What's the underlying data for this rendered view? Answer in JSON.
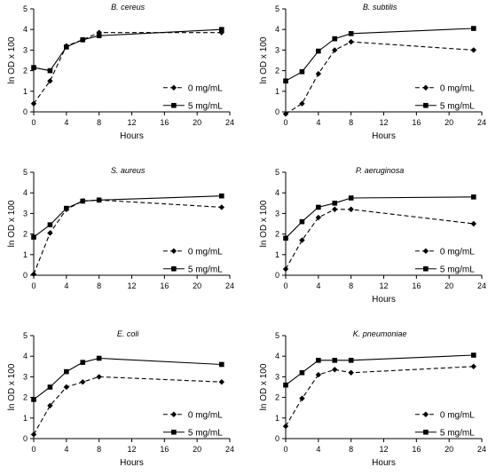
{
  "chart_data": [
    {
      "type": "line",
      "title": "B. cereus",
      "xlabel": "Hours",
      "ylabel": "ln OD x 100",
      "xlim": [
        0,
        24
      ],
      "ylim": [
        0,
        5
      ],
      "xticks": [
        0,
        4,
        8,
        12,
        16,
        20,
        24
      ],
      "yticks": [
        0,
        1,
        2,
        3,
        4,
        5
      ],
      "legend_position": "center-right",
      "series": [
        {
          "name": "0 mg/mL",
          "marker": "diamond",
          "line": "dashed",
          "x": [
            0,
            2,
            4,
            6,
            8,
            23
          ],
          "y": [
            0.4,
            1.5,
            3.2,
            3.5,
            3.85,
            3.85
          ]
        },
        {
          "name": "5 mg/mL",
          "marker": "square",
          "line": "solid",
          "x": [
            0,
            2,
            4,
            6,
            8,
            23
          ],
          "y": [
            2.15,
            2.0,
            3.15,
            3.5,
            3.7,
            4.0
          ]
        }
      ]
    },
    {
      "type": "line",
      "title": "B. subtilis",
      "xlabel": "Hours",
      "ylabel": "ln OD x 100",
      "xlim": [
        0,
        24
      ],
      "ylim": [
        0,
        5
      ],
      "xticks": [
        0,
        4,
        8,
        12,
        16,
        20,
        24
      ],
      "yticks": [
        0,
        1,
        2,
        3,
        4,
        5
      ],
      "legend_position": "center-right",
      "series": [
        {
          "name": "0 mg/mL",
          "marker": "diamond",
          "line": "dashed",
          "x": [
            0,
            2,
            4,
            6,
            8,
            23
          ],
          "y": [
            -0.1,
            0.4,
            1.85,
            3.0,
            3.4,
            3.0
          ]
        },
        {
          "name": "5 mg/mL",
          "marker": "square",
          "line": "solid",
          "x": [
            0,
            2,
            4,
            6,
            8,
            23
          ],
          "y": [
            1.5,
            1.95,
            2.95,
            3.55,
            3.8,
            4.05
          ]
        }
      ]
    },
    {
      "type": "line",
      "title": "S. aureus",
      "xlabel": "",
      "ylabel": "ln OD x 100",
      "xlim": [
        0,
        24
      ],
      "ylim": [
        0,
        5
      ],
      "xticks": [
        0,
        4,
        8,
        12,
        16,
        20,
        24
      ],
      "yticks": [
        0,
        1,
        2,
        3,
        4,
        5
      ],
      "legend_position": "center-right",
      "series": [
        {
          "name": "0 mg/mL",
          "marker": "diamond",
          "line": "dashed",
          "x": [
            0,
            2,
            4,
            6,
            8,
            23
          ],
          "y": [
            0.05,
            2.05,
            3.2,
            3.6,
            3.65,
            3.3
          ]
        },
        {
          "name": "5 mg/mL",
          "marker": "square",
          "line": "solid",
          "x": [
            0,
            2,
            4,
            6,
            8,
            23
          ],
          "y": [
            1.85,
            2.45,
            3.25,
            3.6,
            3.65,
            3.85
          ]
        }
      ]
    },
    {
      "type": "line",
      "title": "P. aeruginosa",
      "xlabel": "Hours",
      "ylabel": "ln OD x 100",
      "xlim": [
        0,
        24
      ],
      "ylim": [
        0,
        5
      ],
      "xticks": [
        0,
        4,
        8,
        12,
        16,
        20,
        24
      ],
      "yticks": [
        0,
        1,
        2,
        3,
        4,
        5
      ],
      "legend_position": "center-right",
      "series": [
        {
          "name": "0 mg/mL",
          "marker": "diamond",
          "line": "dashed",
          "x": [
            0,
            2,
            4,
            6,
            8,
            23
          ],
          "y": [
            0.3,
            1.7,
            2.8,
            3.2,
            3.2,
            2.5
          ]
        },
        {
          "name": "5 mg/mL",
          "marker": "square",
          "line": "solid",
          "x": [
            0,
            2,
            4,
            6,
            8,
            23
          ],
          "y": [
            1.8,
            2.6,
            3.3,
            3.5,
            3.75,
            3.8
          ]
        }
      ]
    },
    {
      "type": "line",
      "title": "E. coli",
      "xlabel": "Hours",
      "ylabel": "ln OD x 100",
      "xlim": [
        0,
        24
      ],
      "ylim": [
        0,
        5
      ],
      "xticks": [
        0,
        4,
        8,
        12,
        16,
        20,
        24
      ],
      "yticks": [
        0,
        1,
        2,
        3,
        4,
        5
      ],
      "legend_position": "center-right",
      "series": [
        {
          "name": "0 mg/mL",
          "marker": "diamond",
          "line": "dashed",
          "x": [
            0,
            2,
            4,
            6,
            8,
            23
          ],
          "y": [
            0.2,
            1.6,
            2.5,
            2.75,
            3.0,
            2.75
          ]
        },
        {
          "name": "5 mg/mL",
          "marker": "square",
          "line": "solid",
          "x": [
            0,
            2,
            4,
            6,
            8,
            23
          ],
          "y": [
            1.9,
            2.5,
            3.25,
            3.7,
            3.9,
            3.6
          ]
        }
      ]
    },
    {
      "type": "line",
      "title": "K. pneumoniae",
      "xlabel": "Hours",
      "ylabel": "ln OD x 100",
      "xlim": [
        0,
        24
      ],
      "ylim": [
        0,
        5
      ],
      "xticks": [
        0,
        4,
        8,
        12,
        16,
        20,
        24
      ],
      "yticks": [
        0,
        1,
        2,
        3,
        4,
        5
      ],
      "legend_position": "center-right",
      "series": [
        {
          "name": "0 mg/mL",
          "marker": "diamond",
          "line": "dashed",
          "x": [
            0,
            2,
            4,
            6,
            8,
            23
          ],
          "y": [
            0.6,
            1.95,
            3.1,
            3.35,
            3.2,
            3.5
          ]
        },
        {
          "name": "5 mg/mL",
          "marker": "square",
          "line": "solid",
          "x": [
            0,
            2,
            4,
            6,
            8,
            23
          ],
          "y": [
            2.6,
            3.2,
            3.8,
            3.8,
            3.8,
            4.05
          ]
        }
      ]
    }
  ]
}
